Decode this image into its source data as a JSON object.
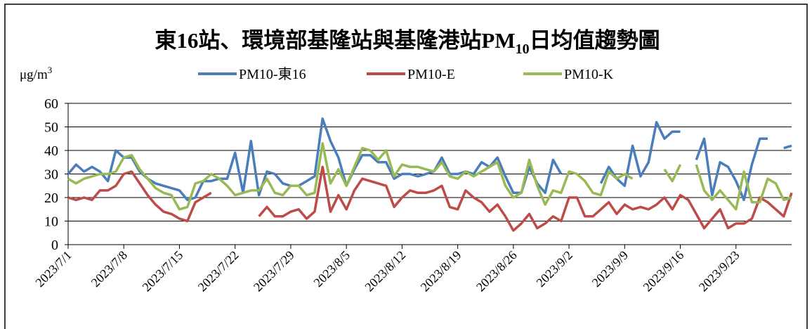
{
  "chart_data": {
    "type": "line",
    "title": [
      "東16站、環境部基隆站與基隆港站PM",
      "10",
      "日均值趨勢圖"
    ],
    "y_label": [
      "μg/m",
      "3"
    ],
    "categories": [
      "2023/7/1",
      null,
      null,
      null,
      null,
      null,
      null,
      "2023/7/8",
      null,
      null,
      null,
      null,
      null,
      null,
      "2023/7/15",
      null,
      null,
      null,
      null,
      null,
      null,
      "2023/7/22",
      null,
      null,
      null,
      null,
      null,
      null,
      "2023/7/29",
      null,
      null,
      null,
      null,
      null,
      null,
      "2023/8/5",
      null,
      null,
      null,
      null,
      null,
      null,
      "2023/8/12",
      null,
      null,
      null,
      null,
      null,
      null,
      "2023/8/19",
      null,
      null,
      null,
      null,
      null,
      null,
      "2023/8/26",
      null,
      null,
      null,
      null,
      null,
      null,
      "2023/9/2",
      null,
      null,
      null,
      null,
      null,
      null,
      "2023/9/9",
      null,
      null,
      null,
      null,
      null,
      null,
      "2023/9/16",
      null,
      null,
      null,
      null,
      null,
      null,
      "2023/9/23",
      null,
      null,
      null,
      null,
      null,
      null,
      null
    ],
    "series": [
      {
        "name": "PM10-東16",
        "color": "#4a7ebb",
        "values": [
          30,
          34,
          31,
          33,
          31,
          27,
          40,
          37,
          37,
          31,
          28,
          26,
          25,
          24,
          23,
          19,
          20,
          27,
          27,
          28,
          28,
          39,
          22,
          44,
          21,
          31,
          30,
          26,
          25,
          25,
          27,
          29,
          53.5,
          44,
          37,
          25,
          32,
          38,
          38,
          35,
          35,
          28,
          30,
          30,
          29,
          30,
          31,
          37,
          30,
          30,
          31,
          30,
          35,
          33,
          37,
          29,
          22,
          22,
          33,
          26,
          22,
          36,
          30,
          null,
          null,
          null,
          null,
          26,
          33,
          28,
          25,
          42,
          29,
          35,
          52,
          45,
          48,
          48,
          null,
          36,
          45,
          21,
          35,
          33,
          27,
          19,
          34,
          45,
          45,
          null,
          41,
          42
        ]
      },
      {
        "name": "PM10-E",
        "color": "#be4b48",
        "values": [
          20,
          19,
          20,
          19,
          23,
          23,
          25,
          30,
          31,
          26,
          21,
          17,
          14,
          13,
          11,
          10,
          18,
          20,
          22,
          null,
          null,
          null,
          null,
          null,
          12,
          16,
          12,
          12,
          14,
          15,
          11,
          14,
          33,
          14,
          21,
          15,
          23,
          28,
          27,
          26,
          25,
          16,
          20,
          23,
          22,
          22,
          23,
          25,
          16,
          15,
          23,
          20,
          18,
          14,
          17,
          12,
          6,
          9,
          13,
          7,
          9,
          12,
          10,
          20,
          20,
          12,
          12,
          15,
          18,
          13,
          17,
          15,
          16,
          15,
          17,
          20,
          15,
          21,
          19,
          13,
          7,
          11,
          15,
          7,
          9,
          9,
          11,
          20,
          18,
          15,
          12,
          22
        ]
      },
      {
        "name": "PM10-K",
        "color": "#98b954",
        "values": [
          28,
          26,
          28,
          29,
          30,
          30,
          31,
          37,
          38,
          32,
          28,
          24,
          22,
          21,
          15,
          16,
          26,
          27,
          30,
          28,
          25,
          21,
          22,
          23,
          23,
          28,
          22,
          21,
          25,
          25,
          21,
          22,
          43,
          26,
          32,
          25,
          33,
          41,
          40,
          36,
          40,
          29,
          34,
          33,
          33,
          32,
          31,
          35,
          29,
          28,
          31,
          29,
          31,
          33,
          35,
          25,
          20,
          22,
          36,
          25,
          17,
          23,
          22,
          31,
          30,
          27,
          22,
          21,
          31,
          28,
          30,
          28,
          null,
          null,
          null,
          32,
          27,
          34,
          null,
          34,
          23,
          19,
          23,
          19,
          15,
          31,
          18,
          18,
          28,
          26,
          19,
          20
        ]
      }
    ],
    "ylim": [
      0,
      60
    ],
    "yticks": [
      0,
      10,
      20,
      30,
      40,
      50,
      60
    ],
    "grid": true
  }
}
